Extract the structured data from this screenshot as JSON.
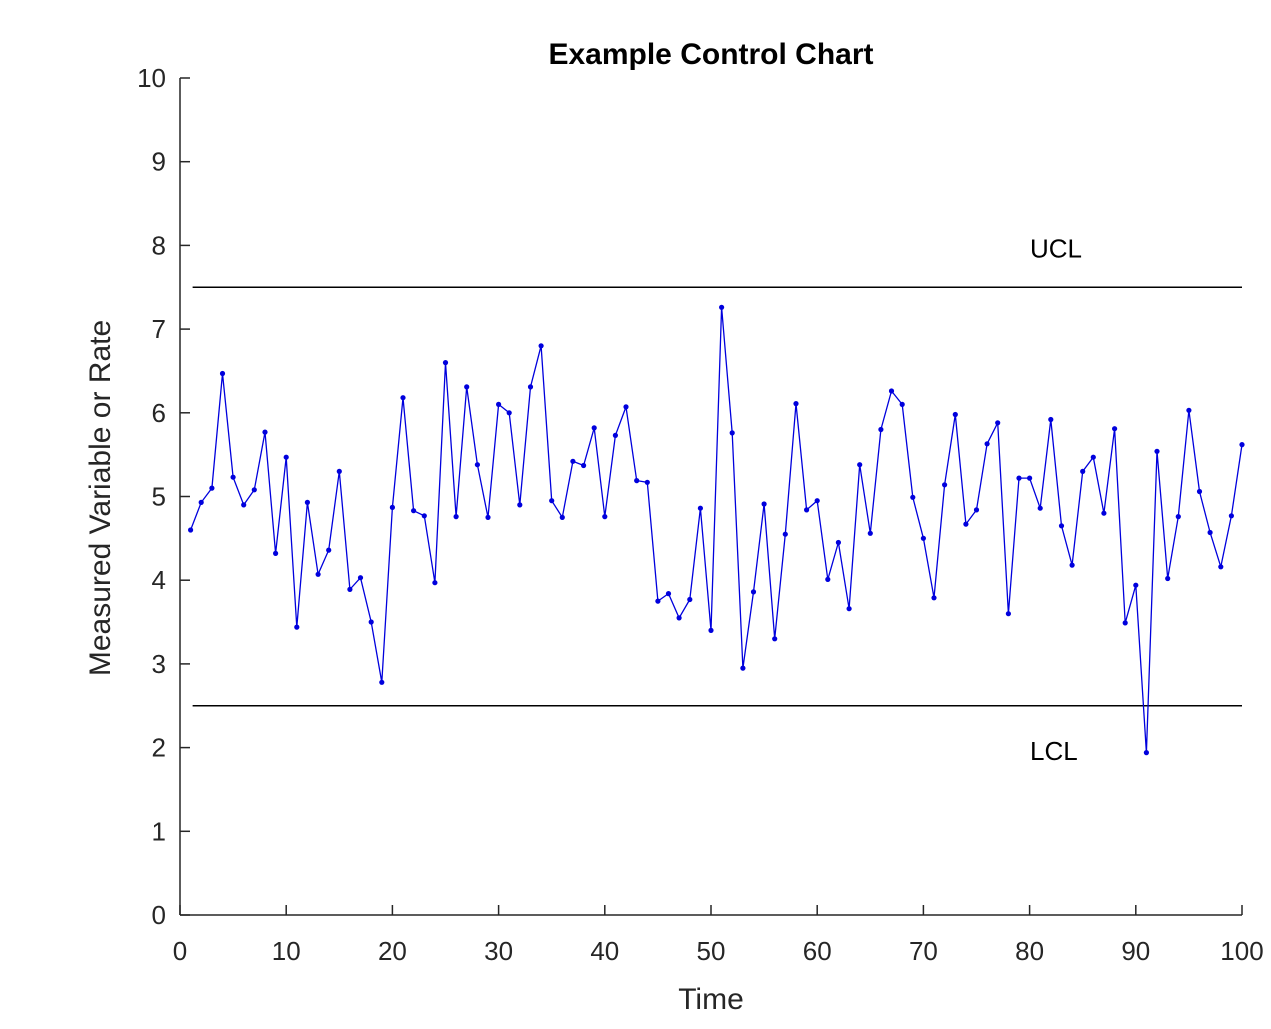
{
  "chart_data": {
    "type": "line",
    "title": "Example Control Chart",
    "xlabel": "Time",
    "ylabel": "Measured Variable or Rate",
    "xlim": [
      0,
      100
    ],
    "ylim": [
      0,
      10
    ],
    "x_ticks": [
      0,
      10,
      20,
      30,
      40,
      50,
      60,
      70,
      80,
      90,
      100
    ],
    "y_ticks": [
      0,
      1,
      2,
      3,
      4,
      5,
      6,
      7,
      8,
      9,
      10
    ],
    "x_tick_labels": [
      "0",
      "10",
      "20",
      "30",
      "40",
      "50",
      "60",
      "70",
      "80",
      "90",
      "100"
    ],
    "y_tick_labels": [
      "0",
      "1",
      "2",
      "3",
      "4",
      "5",
      "6",
      "7",
      "8",
      "9",
      "10"
    ],
    "grid": false,
    "colors": {
      "series": "#0000dd",
      "limits": "#000000",
      "axis": "#262626"
    },
    "limits": [
      {
        "label": "UCL",
        "y": 7.5,
        "x_range": [
          1,
          100
        ]
      },
      {
        "label": "LCL",
        "y": 2.5,
        "x_range": [
          1,
          100
        ]
      }
    ],
    "series": [
      {
        "x": [
          1,
          2,
          3,
          4,
          5,
          6,
          7,
          8,
          9,
          10,
          11,
          12,
          13,
          14,
          15,
          16,
          17,
          18,
          19,
          20,
          21,
          22,
          23,
          24,
          25,
          26,
          27,
          28,
          29,
          30,
          31,
          32,
          33,
          34,
          35,
          36,
          37,
          38,
          39,
          40,
          41,
          42,
          43,
          44,
          45,
          46,
          47,
          48,
          49,
          50,
          51,
          52,
          53,
          54,
          55,
          56,
          57,
          58,
          59,
          60,
          61,
          62,
          63,
          64,
          65,
          66,
          67,
          68,
          69,
          70,
          71,
          72,
          73,
          74,
          75,
          76,
          77,
          78,
          79,
          80,
          81,
          82,
          83,
          84,
          85,
          86,
          87,
          88,
          89,
          90,
          91,
          92,
          93,
          94,
          95,
          96,
          97,
          98,
          99,
          100
        ],
        "y": [
          4.6,
          4.93,
          5.1,
          6.47,
          5.23,
          4.9,
          5.08,
          5.77,
          4.32,
          5.47,
          3.44,
          4.93,
          4.07,
          4.36,
          5.3,
          3.89,
          4.03,
          3.5,
          2.78,
          4.87,
          6.18,
          4.83,
          4.77,
          3.97,
          6.6,
          4.76,
          6.31,
          5.38,
          4.75,
          6.1,
          6.0,
          4.9,
          6.31,
          6.8,
          4.95,
          4.75,
          5.42,
          5.37,
          5.82,
          4.76,
          5.73,
          6.07,
          5.19,
          5.17,
          3.75,
          3.84,
          3.55,
          3.77,
          4.86,
          3.4,
          7.26,
          5.76,
          2.95,
          3.86,
          4.91,
          3.3,
          4.55,
          6.11,
          4.84,
          4.95,
          4.01,
          4.45,
          3.66,
          5.38,
          4.56,
          5.8,
          6.26,
          6.1,
          4.99,
          4.5,
          3.79,
          5.14,
          5.98,
          4.67,
          4.84,
          5.63,
          5.88,
          3.6,
          5.22,
          5.22,
          4.86,
          5.92,
          4.65,
          4.18,
          5.3,
          5.47,
          4.8,
          5.81,
          3.49,
          3.94,
          1.94,
          5.54,
          4.02,
          4.76,
          6.03,
          5.06,
          4.57,
          4.16,
          4.77,
          5.62
        ]
      }
    ]
  }
}
